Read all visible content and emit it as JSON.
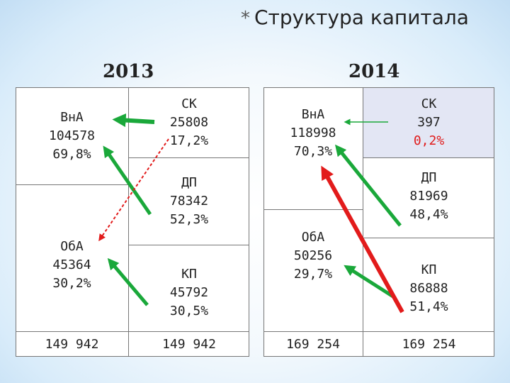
{
  "title": {
    "star": "*",
    "text": "Структура капитала"
  },
  "years": [
    "2013",
    "2014"
  ],
  "bal2013": {
    "vna": {
      "name": "ВнА",
      "value": "104578",
      "pct": "69,8%"
    },
    "oba": {
      "name": "ОбА",
      "value": "45364",
      "pct": "30,2%"
    },
    "sk": {
      "name": "СК",
      "value": "25808",
      "pct": "17,2%"
    },
    "dp": {
      "name": "ДП",
      "value": "78342",
      "pct": "52,3%"
    },
    "kp": {
      "name": "КП",
      "value": "45792",
      "pct": "30,5%"
    },
    "total_left": "149 942",
    "total_right": "149 942"
  },
  "bal2014": {
    "vna": {
      "name": "ВнА",
      "value": "118998",
      "pct": "70,3%"
    },
    "oba": {
      "name": "ОбА",
      "value": "50256",
      "pct": "29,7%"
    },
    "sk": {
      "name": "СК",
      "value": "397",
      "pct": "0,2%"
    },
    "dp": {
      "name": "ДП",
      "value": "81969",
      "pct": "48,4%"
    },
    "kp": {
      "name": "КП",
      "value": "86888",
      "pct": "51,4%"
    },
    "total_left": "169 254",
    "total_right": "169 254"
  },
  "colors": {
    "green_arrow": "#1aa83a",
    "red_arrow": "#e21b1b",
    "highlight_red": "#e01b1b",
    "sk_fill": "#e3e6f4"
  }
}
